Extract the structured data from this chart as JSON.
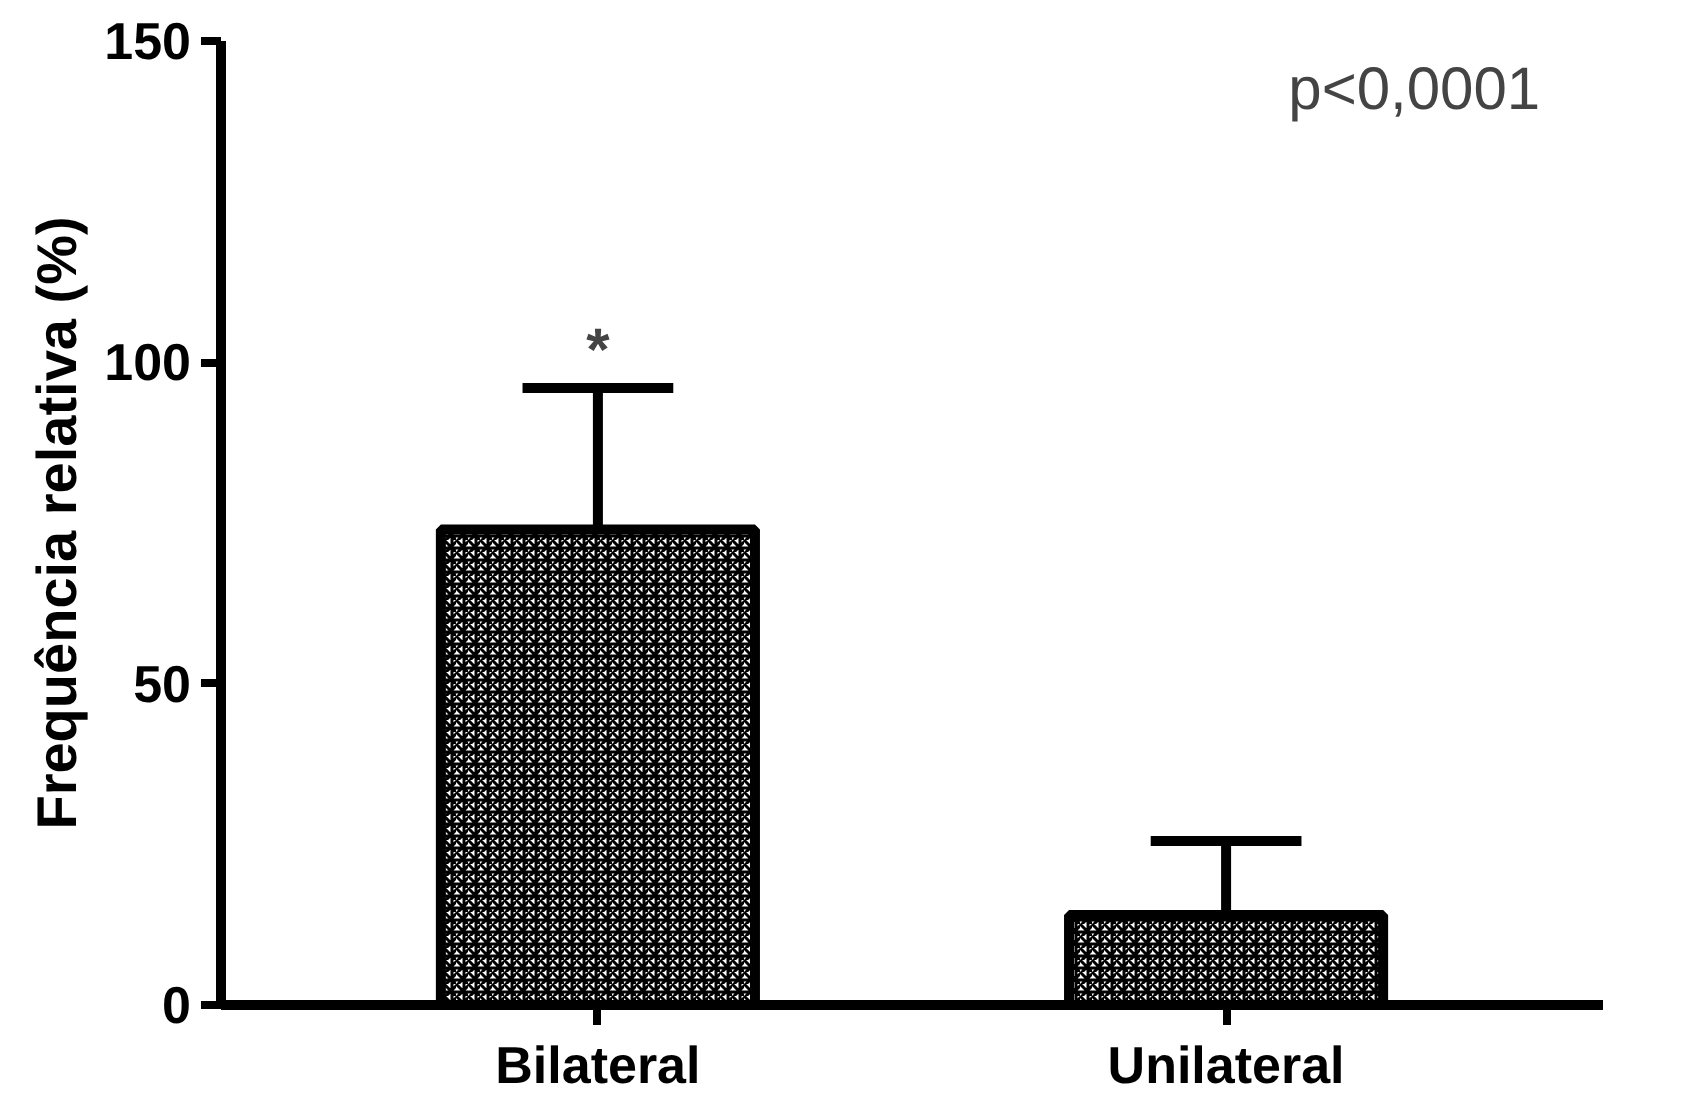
{
  "chart_data": {
    "type": "bar",
    "ylabel": "Frequência relativa (%)",
    "categories": [
      "Bilateral",
      "Unilateral"
    ],
    "values": [
      74,
      14
    ],
    "errors": [
      22,
      11.5
    ],
    "color": "#000000",
    "ylim": [
      0,
      150
    ],
    "yticks": [
      0,
      50,
      100,
      150
    ],
    "grid": false,
    "annotations": [
      "*",
      "p<0,0001"
    ]
  }
}
